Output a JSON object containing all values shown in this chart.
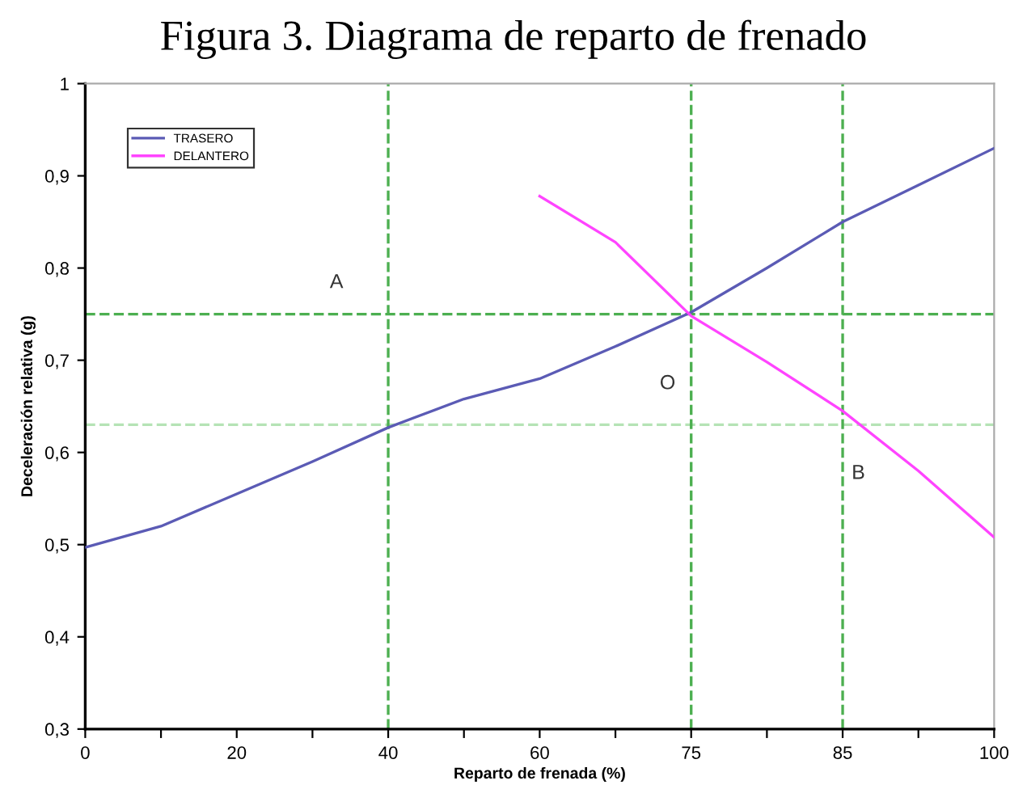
{
  "chart_data": {
    "type": "line",
    "title": "Figura 3. Diagrama de reparto de frenado",
    "xlabel": "Reparto de frenada (%)",
    "ylabel": "Deceleración relativa (g)",
    "categories": [
      "0",
      null,
      "20",
      null,
      "40",
      null,
      "60",
      null,
      "75",
      null,
      "85",
      null,
      "100"
    ],
    "series": [
      {
        "name": "TRASERO",
        "color": "#5b5bb5",
        "values": [
          0.497,
          0.52,
          0.555,
          0.59,
          0.627,
          0.658,
          0.68,
          0.715,
          0.752,
          0.8,
          0.85,
          0.89,
          0.93
        ]
      },
      {
        "name": "DELANTERO",
        "color": "#ff44ff",
        "values": [
          null,
          null,
          null,
          null,
          null,
          null,
          0.878,
          0.828,
          0.748,
          0.698,
          0.645,
          0.58,
          0.508
        ]
      }
    ],
    "ylim": [
      0.3,
      1
    ],
    "yticks": [
      {
        "value": 0.3,
        "label": "0,3"
      },
      {
        "value": 0.4,
        "label": "0,4"
      },
      {
        "value": 0.5,
        "label": "0,5"
      },
      {
        "value": 0.6,
        "label": "0,6"
      },
      {
        "value": 0.7,
        "label": "0,7"
      },
      {
        "value": 0.8,
        "label": "0,8"
      },
      {
        "value": 0.9,
        "label": "0,9"
      },
      {
        "value": 1,
        "label": "1"
      }
    ],
    "ref_lines": [
      {
        "axis": "y",
        "value": 0.75,
        "color": "#4caf50",
        "line_style": "dashed"
      },
      {
        "axis": "y",
        "value": 0.63,
        "color": "#b5e3b5",
        "line_style": "dashed"
      },
      {
        "axis": "x",
        "value": "40",
        "color": "#4caf50",
        "line_style": "dashed"
      },
      {
        "axis": "x",
        "value": "75",
        "color": "#4caf50",
        "line_style": "dashed"
      },
      {
        "axis": "x",
        "value": "85",
        "color": "#4caf50",
        "line_style": "dashed"
      }
    ],
    "annotations": [
      "A",
      "O",
      "B"
    ],
    "grid": false,
    "legend": "top left",
    "marker": "none",
    "line_style": "solid"
  }
}
